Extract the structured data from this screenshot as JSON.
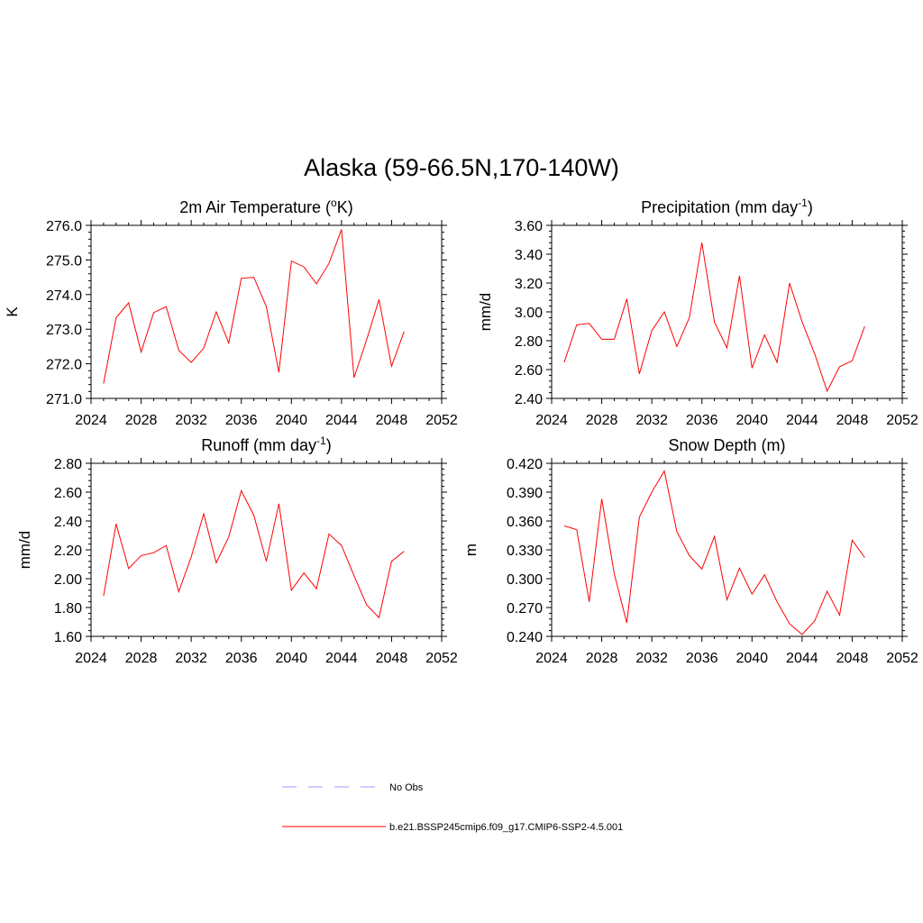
{
  "figure": {
    "title": "Alaska (59-66.5N,170-140W)"
  },
  "legend": {
    "items": [
      {
        "label": "No Obs",
        "color": "#9999ff",
        "style": "dashed"
      },
      {
        "label": "b.e21.BSSP245cmip6.f09_g17.CMIP6-SSP2-4.5.001",
        "color": "#ff0000",
        "style": "solid"
      }
    ]
  },
  "chart_data": [
    {
      "type": "line",
      "title": "2m Air Temperature (°K)",
      "title_parts": {
        "main": "2m Air Temperature (",
        "sup": "o",
        "rest": "K)"
      },
      "xlabel": "",
      "ylabel": "K",
      "xlim": [
        2024,
        2052
      ],
      "ylim": [
        271.0,
        276.0
      ],
      "xticks": [
        "2024",
        "2028",
        "2032",
        "2036",
        "2040",
        "2044",
        "2048",
        "2052"
      ],
      "yticks": [
        "271.0",
        "272.0",
        "273.0",
        "274.0",
        "275.0",
        "276.0"
      ],
      "series": [
        {
          "color": "#ff0000",
          "x": [
            2025,
            2026,
            2027,
            2028,
            2029,
            2030,
            2031,
            2032,
            2033,
            2034,
            2035,
            2036,
            2037,
            2038,
            2039,
            2040,
            2041,
            2042,
            2043,
            2044,
            2045,
            2046,
            2047,
            2048,
            2049
          ],
          "values": [
            271.43,
            273.33,
            273.76,
            272.34,
            273.48,
            273.65,
            272.39,
            272.04,
            272.45,
            273.5,
            272.6,
            274.47,
            274.5,
            273.65,
            271.75,
            274.97,
            274.8,
            274.31,
            274.9,
            275.88,
            271.6,
            272.68,
            273.86,
            271.93,
            272.93
          ]
        }
      ]
    },
    {
      "type": "line",
      "title": "Precipitation (mm day-1)",
      "title_parts": {
        "main": "Precipitation (mm day",
        "sup": "-1",
        "rest": ")"
      },
      "xlabel": "",
      "ylabel": "mm/d",
      "xlim": [
        2024,
        2052
      ],
      "ylim": [
        2.4,
        3.6
      ],
      "xticks": [
        "2024",
        "2028",
        "2032",
        "2036",
        "2040",
        "2044",
        "2048",
        "2052"
      ],
      "yticks": [
        "2.40",
        "2.60",
        "2.80",
        "3.00",
        "3.20",
        "3.40",
        "3.60"
      ],
      "series": [
        {
          "color": "#ff0000",
          "x": [
            2025,
            2026,
            2027,
            2028,
            2029,
            2030,
            2031,
            2032,
            2033,
            2034,
            2035,
            2036,
            2037,
            2038,
            2039,
            2040,
            2041,
            2042,
            2043,
            2044,
            2045,
            2046,
            2047,
            2048,
            2049
          ],
          "values": [
            2.65,
            2.91,
            2.92,
            2.81,
            2.81,
            3.09,
            2.57,
            2.87,
            3.0,
            2.76,
            2.96,
            3.48,
            2.93,
            2.75,
            3.25,
            2.61,
            2.84,
            2.65,
            3.2,
            2.93,
            2.71,
            2.45,
            2.62,
            2.66,
            2.9
          ]
        }
      ]
    },
    {
      "type": "line",
      "title": "Runoff (mm day-1)",
      "title_parts": {
        "main": "Runoff (mm day",
        "sup": "-1",
        "rest": ")"
      },
      "xlabel": "",
      "ylabel": "mm/d",
      "xlim": [
        2024,
        2052
      ],
      "ylim": [
        1.6,
        2.8
      ],
      "xticks": [
        "2024",
        "2028",
        "2032",
        "2036",
        "2040",
        "2044",
        "2048",
        "2052"
      ],
      "yticks": [
        "1.60",
        "1.80",
        "2.00",
        "2.20",
        "2.40",
        "2.60",
        "2.80"
      ],
      "series": [
        {
          "color": "#ff0000",
          "x": [
            2025,
            2026,
            2027,
            2028,
            2029,
            2030,
            2031,
            2032,
            2033,
            2034,
            2035,
            2036,
            2037,
            2038,
            2039,
            2040,
            2041,
            2042,
            2043,
            2044,
            2045,
            2046,
            2047,
            2048,
            2049
          ],
          "values": [
            1.88,
            2.38,
            2.07,
            2.16,
            2.18,
            2.23,
            1.91,
            2.15,
            2.45,
            2.11,
            2.29,
            2.61,
            2.44,
            2.12,
            2.52,
            1.92,
            2.04,
            1.93,
            2.31,
            2.23,
            2.02,
            1.82,
            1.73,
            2.12,
            2.19
          ]
        }
      ]
    },
    {
      "type": "line",
      "title": "Snow Depth (m)",
      "title_parts": {
        "main": "Snow Depth (m)",
        "sup": "",
        "rest": ""
      },
      "xlabel": "",
      "ylabel": "m",
      "xlim": [
        2024,
        2052
      ],
      "ylim": [
        0.24,
        0.42
      ],
      "xticks": [
        "2024",
        "2028",
        "2032",
        "2036",
        "2040",
        "2044",
        "2048",
        "2052"
      ],
      "yticks": [
        "0.240",
        "0.270",
        "0.300",
        "0.330",
        "0.360",
        "0.390",
        "0.420"
      ],
      "series": [
        {
          "color": "#ff0000",
          "x": [
            2025,
            2026,
            2027,
            2028,
            2029,
            2030,
            2031,
            2032,
            2033,
            2034,
            2035,
            2036,
            2037,
            2038,
            2039,
            2040,
            2041,
            2042,
            2043,
            2044,
            2045,
            2046,
            2047,
            2048,
            2049
          ],
          "values": [
            0.355,
            0.351,
            0.276,
            0.383,
            0.305,
            0.254,
            0.364,
            0.39,
            0.412,
            0.349,
            0.324,
            0.31,
            0.344,
            0.278,
            0.311,
            0.284,
            0.304,
            0.276,
            0.253,
            0.242,
            0.256,
            0.287,
            0.262,
            0.34,
            0.322
          ]
        }
      ]
    }
  ]
}
